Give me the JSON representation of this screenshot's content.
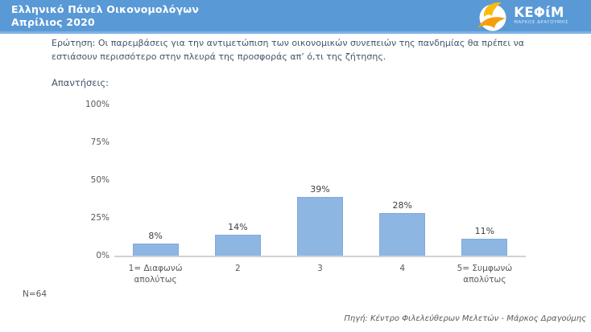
{
  "page": {
    "background": "#FFFFFF"
  },
  "header": {
    "title_line1": "Ελληνικό Πάνελ Οικονομολόγων",
    "title_line2": "Απρίλιος 2020",
    "bg_color": "#5999D6",
    "accent_line_color": "#7FB1E3",
    "logo": {
      "name": "ΚΕΦίΜ",
      "subtitle": "ΜΑΡΚΟΣ ΔΡΑΓΟΥΜΗΣ",
      "bird_wing_color": "#FBBA0D",
      "bird_body_color": "#F59E0B",
      "circle_color": "#FFFFFF"
    }
  },
  "question": "Ερώτηση: Οι παρεμβάσεις για την αντιμετώπιση των οικονομικών συνεπειών της πανδημίας θα πρέπει να εστιάσουν περισσότερο στην πλευρά της προσφοράς απ’ ό,τι της ζήτησης.",
  "answers_label": "Απαντήσεις:",
  "sample_size": "N=64",
  "source": "Πηγή: Κέντρο Φιλελεύθερων Μελετών - Μάρκος Δραγούμης",
  "chart_data": {
    "type": "bar",
    "title": "Απαντήσεις",
    "categories": [
      "1= Διαφωνώ απολύτως",
      "2",
      "3",
      "4",
      "5= Συμφωνώ απολύτως"
    ],
    "values": [
      8,
      14,
      39,
      28,
      11
    ],
    "value_labels": [
      "8%",
      "14%",
      "39%",
      "28%",
      "11%"
    ],
    "ylim": [
      0,
      100
    ],
    "yticks": [
      "0%",
      "25%",
      "50%",
      "75%",
      "100%"
    ],
    "bar_color": "#8DB6E2",
    "bar_border_color": "#81ABD9",
    "axis_line_color": "#D2D2D2",
    "grid": false,
    "legend": "none"
  }
}
